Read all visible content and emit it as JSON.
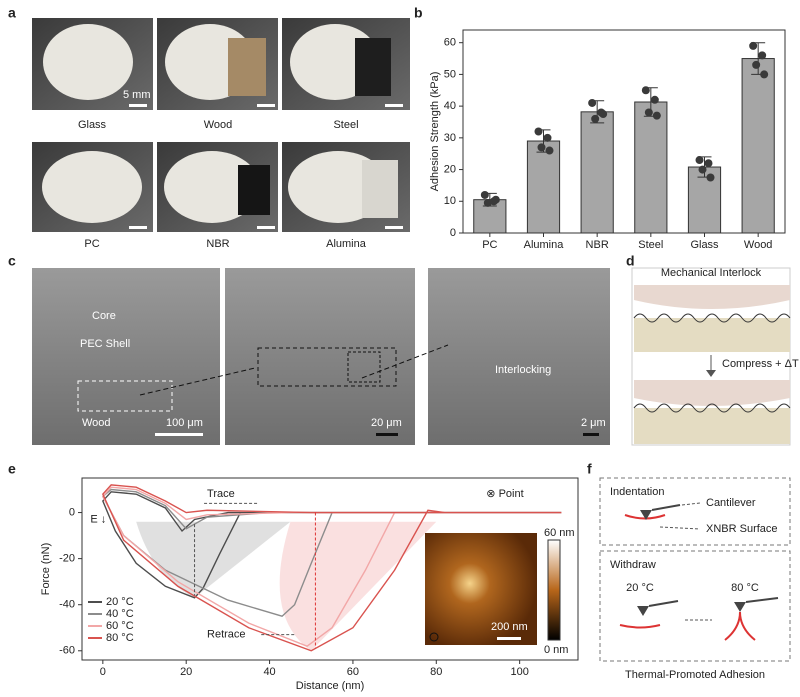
{
  "panel_letters": [
    "a",
    "b",
    "c",
    "d",
    "e",
    "f"
  ],
  "panel_a": {
    "scale_bar": "5 mm",
    "labels": [
      "Glass",
      "Wood",
      "Steel",
      "PC",
      "NBR",
      "Alumina"
    ]
  },
  "panel_c": {
    "core": "Core",
    "shell": "PEC Shell",
    "substrate": "Wood",
    "interlocking": "Interlocking",
    "scale_bars": [
      "100 μm",
      "20 μm",
      "2 μm"
    ]
  },
  "panel_d": {
    "title": "Mechanical Interlock",
    "step": "Compress + ΔT"
  },
  "panel_f": {
    "indentation": "Indentation",
    "cantilever": "Cantilever",
    "surface": "XNBR Surface",
    "withdraw": "Withdraw",
    "low_temp": "20 °C",
    "high_temp": "80 °C",
    "caption": "Thermal-Promoted Adhesion"
  },
  "chart_data": [
    {
      "type": "bar",
      "y_label": "Adhesion Strength (kPa)",
      "categories": [
        "PC",
        "Alumina",
        "NBR",
        "Steel",
        "Glass",
        "Wood"
      ],
      "values": [
        10.5,
        29,
        38.2,
        41.3,
        20.8,
        55
      ],
      "errors": [
        2,
        3.5,
        3.5,
        4.5,
        3.2,
        5
      ],
      "points": [
        [
          12,
          10,
          9.5,
          10.5
        ],
        [
          32,
          30,
          27,
          26
        ],
        [
          41,
          38,
          36,
          37.5
        ],
        [
          45,
          42,
          38,
          37
        ],
        [
          23,
          22,
          20,
          17.5
        ],
        [
          59,
          56,
          53,
          50
        ]
      ],
      "color": "#a6a6a6",
      "ylim": [
        0,
        64
      ],
      "yticks": [
        0,
        10,
        20,
        30,
        40,
        50,
        60
      ]
    },
    {
      "type": "line",
      "x_label": "Distance (nm)",
      "y_label": "Force (nN)",
      "xlim": [
        -5,
        114
      ],
      "ylim": [
        -64,
        15
      ],
      "xticks": [
        0,
        20,
        40,
        60,
        80,
        100
      ],
      "yticks": [
        -60,
        -40,
        -20,
        0
      ],
      "annotations": [
        "Trace",
        "Retrace",
        "E ↓",
        "⊗ Point"
      ],
      "inset": {
        "colorbar_max": "60 nm",
        "colorbar_min": "0 nm",
        "scale_bar": "200 nm"
      },
      "series": [
        {
          "name": "20 °C",
          "color": "#4d4d4d",
          "x": [
            110,
            40,
            33,
            28,
            24,
            22,
            15,
            8,
            3,
            0,
            2,
            8,
            15,
            19,
            22,
            30,
            110
          ],
          "values": [
            0,
            0,
            0,
            -18,
            -33,
            -37,
            -32,
            -22,
            -8,
            5,
            9,
            8,
            2,
            -8,
            -3,
            0,
            0
          ]
        },
        {
          "name": "40 °C",
          "color": "#8c8c8c",
          "x": [
            110,
            60,
            55,
            50,
            46,
            43,
            30,
            15,
            5,
            0,
            2,
            8,
            15,
            20,
            25,
            40,
            110
          ],
          "values": [
            0,
            0,
            0,
            -22,
            -40,
            -45,
            -38,
            -25,
            -10,
            7,
            10,
            9,
            3,
            -7,
            -2,
            0,
            0
          ]
        },
        {
          "name": "60 °C",
          "color": "#f2a7a7",
          "x": [
            110,
            75,
            70,
            63,
            55,
            49,
            35,
            18,
            5,
            0,
            2,
            8,
            15,
            20,
            25,
            45,
            110
          ],
          "values": [
            0,
            0,
            0,
            -25,
            -50,
            -58,
            -48,
            -30,
            -10,
            7,
            11,
            10,
            4,
            -3,
            -1,
            0,
            0
          ]
        },
        {
          "name": "80 °C",
          "color": "#d9534f",
          "x": [
            110,
            82,
            78,
            70,
            60,
            50,
            35,
            18,
            5,
            0,
            2,
            8,
            15,
            20,
            25,
            50,
            110
          ],
          "values": [
            0,
            0,
            1,
            -25,
            -50,
            -60,
            -50,
            -32,
            -12,
            8,
            12,
            11,
            5,
            0,
            1,
            0,
            0
          ]
        }
      ]
    }
  ]
}
